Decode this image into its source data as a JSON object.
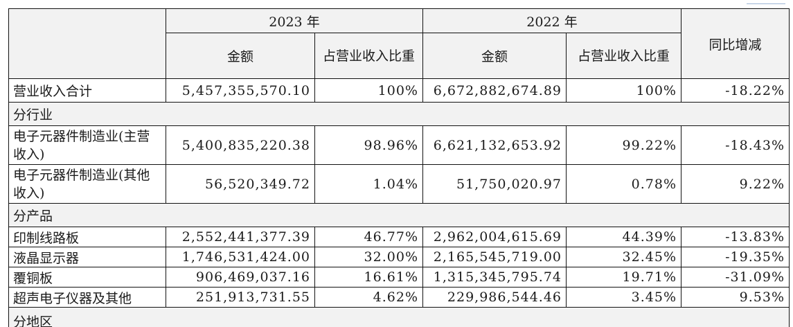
{
  "header": {
    "year_2023": "2023 年",
    "year_2022": "2022 年",
    "amount": "金额",
    "share": "占营业收入比重",
    "yoy": "同比增减"
  },
  "rows": [
    {
      "type": "data",
      "label": "营业收入合计",
      "a2023": "5,457,355,570.10",
      "p2023": "100%",
      "a2022": "6,672,882,674.89",
      "p2022": "100%",
      "yoy": "-18.22%"
    },
    {
      "type": "section",
      "label": "分行业"
    },
    {
      "type": "data",
      "label": "电子元器件制造业(主营收入)",
      "a2023": "5,400,835,220.38",
      "p2023": "98.96%",
      "a2022": "6,621,132,653.92",
      "p2022": "99.22%",
      "yoy": "-18.43%"
    },
    {
      "type": "data",
      "label": "电子元器件制造业(其他收入)",
      "a2023": "56,520,349.72",
      "p2023": "1.04%",
      "a2022": "51,750,020.97",
      "p2022": "0.78%",
      "yoy": "9.22%"
    },
    {
      "type": "section",
      "label": "分产品"
    },
    {
      "type": "data",
      "label": "印制线路板",
      "a2023": "2,552,441,377.39",
      "p2023": "46.77%",
      "a2022": "2,962,004,615.69",
      "p2022": "44.39%",
      "yoy": "-13.83%"
    },
    {
      "type": "data",
      "label": "液晶显示器",
      "a2023": "1,746,531,424.00",
      "p2023": "32.00%",
      "a2022": "2,165,545,719.00",
      "p2022": "32.45%",
      "yoy": "-19.35%"
    },
    {
      "type": "data",
      "label": "覆铜板",
      "a2023": "906,469,037.16",
      "p2023": "16.61%",
      "a2022": "1,315,345,795.74",
      "p2022": "19.71%",
      "yoy": "-31.09%"
    },
    {
      "type": "data",
      "label": "超声电子仪器及其他",
      "a2023": "251,913,731.55",
      "p2023": "4.62%",
      "a2022": "229,986,544.46",
      "p2022": "3.45%",
      "yoy": "9.53%"
    },
    {
      "type": "section",
      "label": "分地区"
    }
  ]
}
